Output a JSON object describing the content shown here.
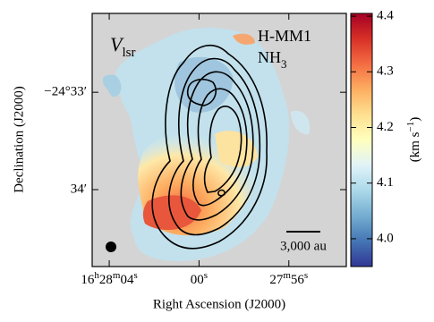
{
  "chart_data": {
    "type": "map",
    "quantity": "Vlsr",
    "annotations": [
      "H-MM1",
      "NH3"
    ],
    "scalebar": "3,000 au",
    "xlabel": "Right Ascension (J2000)",
    "ylabel": "Declination (J2000)",
    "xlim": [
      64.76,
      53.44
    ],
    "xticks": [
      {
        "value": 64,
        "label": "16h28m04s"
      },
      {
        "value": 60,
        "label": "00s"
      },
      {
        "value": 56,
        "label": "27m56s"
      }
    ],
    "ylim": [
      -34.79,
      -32.19
    ],
    "yticks": [
      {
        "value": -33,
        "label": "−24°33′"
      },
      {
        "value": -34,
        "label": "34′"
      }
    ],
    "colorbar": {
      "label": "(km s−1)",
      "lim": [
        3.95,
        4.405
      ],
      "ticks": [
        {
          "value": 4.0,
          "label": "4.0"
        },
        {
          "value": 4.1,
          "label": "4.1"
        },
        {
          "value": 4.2,
          "label": "4.2"
        },
        {
          "value": 4.3,
          "label": "4.3"
        },
        {
          "value": 4.4,
          "label": "4.4"
        }
      ],
      "colors": [
        "#313695",
        "#4575b4",
        "#74add1",
        "#abd9e9",
        "#e0f3f8",
        "#ffffbf",
        "#fee090",
        "#fdae61",
        "#f46d43",
        "#d73027",
        "#a50026"
      ]
    }
  }
}
